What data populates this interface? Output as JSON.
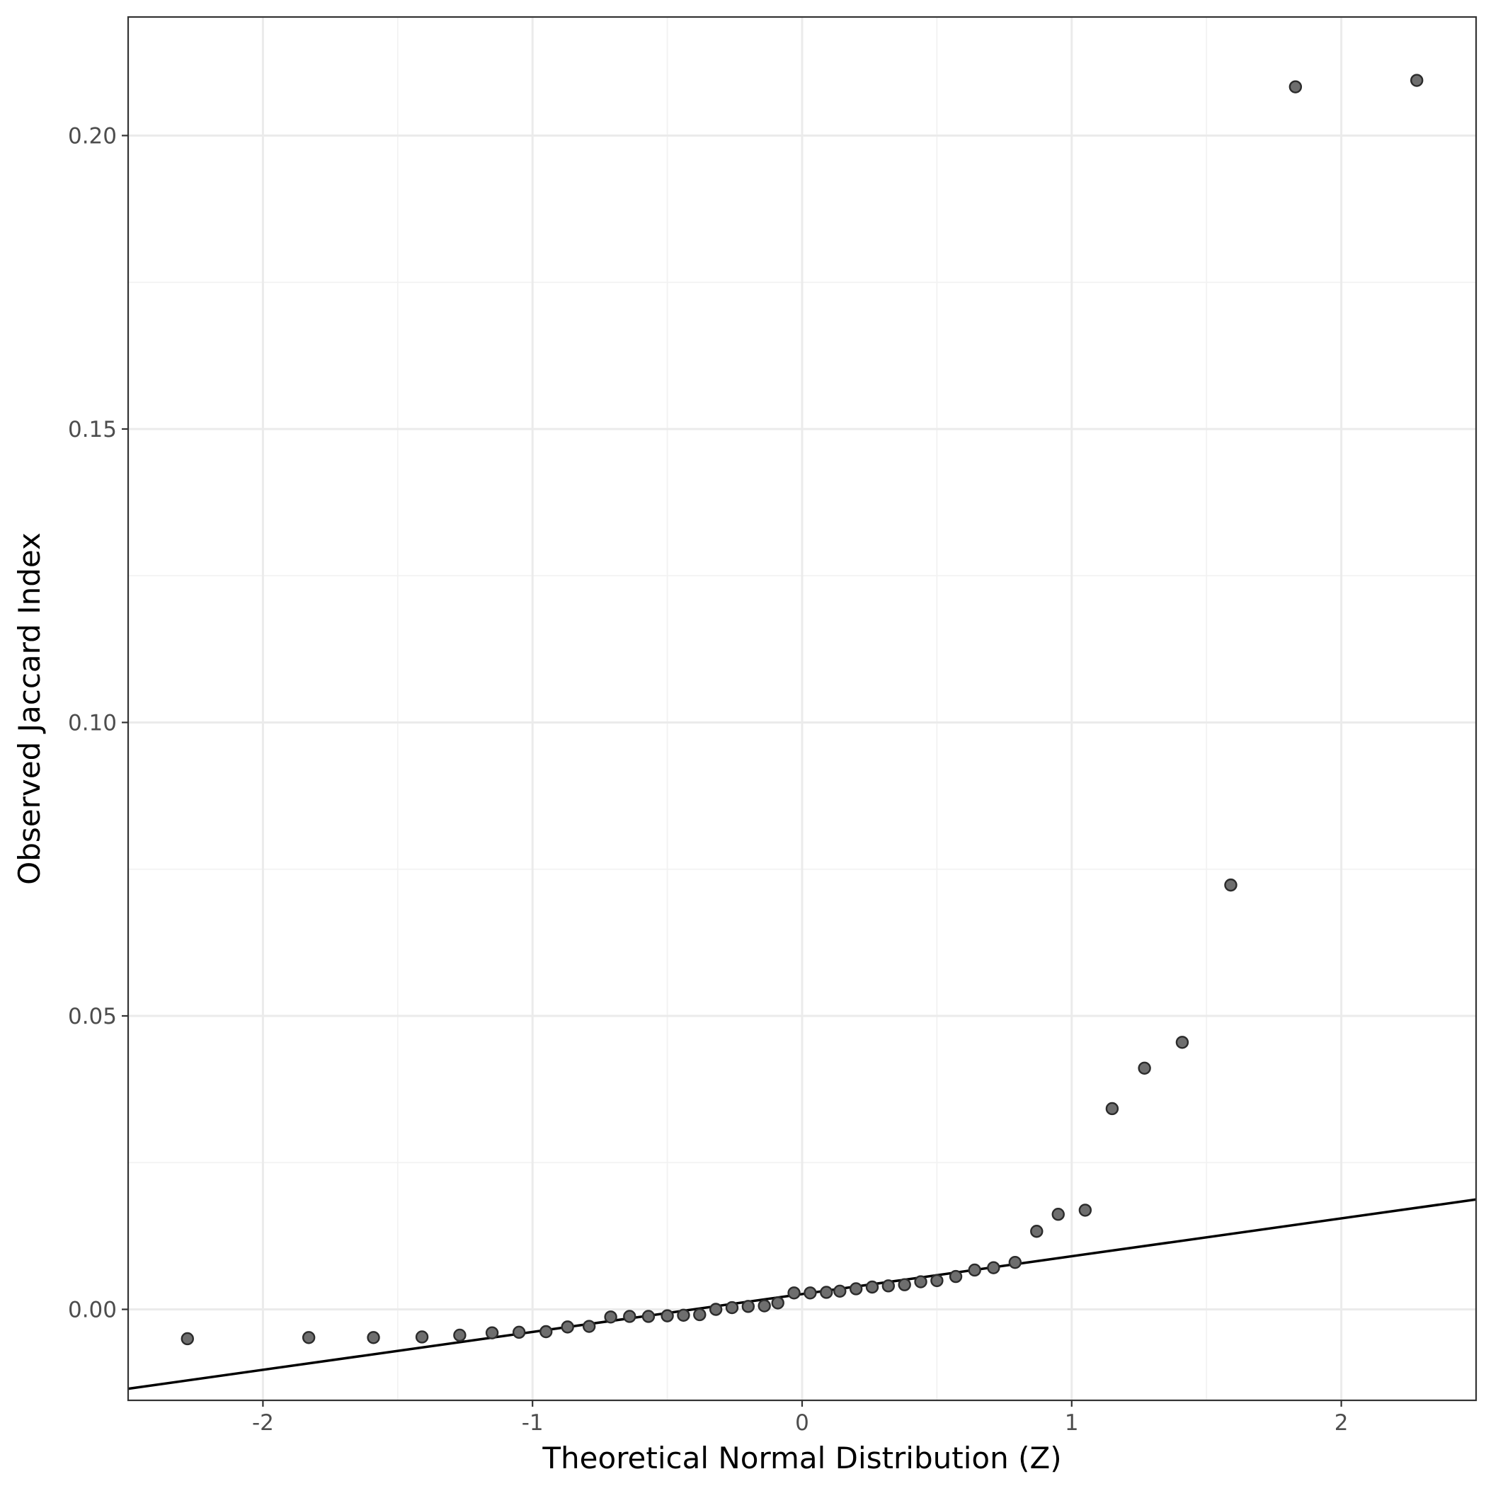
{
  "chart_data": {
    "type": "scatter",
    "title": "",
    "xlabel": "Theoretical Normal Distribution (Z)",
    "ylabel": "Observed Jaccard Index",
    "xlim": [
      -2.5,
      2.5
    ],
    "ylim": [
      -0.0155,
      0.2202
    ],
    "x_ticks": [
      -2,
      -1,
      0,
      1,
      2
    ],
    "x_tick_labels": [
      "-2",
      "-1",
      "0",
      "1",
      "2"
    ],
    "y_ticks": [
      0.0,
      0.05,
      0.1,
      0.15,
      0.2
    ],
    "y_tick_labels": [
      "0.00",
      "0.05",
      "0.10",
      "0.15",
      "0.20"
    ],
    "grid": true,
    "reference_line": {
      "type": "qq-line",
      "intercept": 0.0026,
      "slope": 0.00645
    },
    "points": [
      {
        "x": -2.28,
        "y": -0.005
      },
      {
        "x": -1.83,
        "y": -0.0048
      },
      {
        "x": -1.59,
        "y": -0.0048
      },
      {
        "x": -1.41,
        "y": -0.0047
      },
      {
        "x": -1.27,
        "y": -0.0044
      },
      {
        "x": -1.15,
        "y": -0.004
      },
      {
        "x": -1.05,
        "y": -0.0039
      },
      {
        "x": -0.95,
        "y": -0.0038
      },
      {
        "x": -0.87,
        "y": -0.003
      },
      {
        "x": -0.79,
        "y": -0.0029
      },
      {
        "x": -0.71,
        "y": -0.0013
      },
      {
        "x": -0.64,
        "y": -0.0012
      },
      {
        "x": -0.57,
        "y": -0.0012
      },
      {
        "x": -0.5,
        "y": -0.0011
      },
      {
        "x": -0.44,
        "y": -0.001
      },
      {
        "x": -0.38,
        "y": -0.0009
      },
      {
        "x": -0.32,
        "y": 0.0
      },
      {
        "x": -0.26,
        "y": 0.0003
      },
      {
        "x": -0.2,
        "y": 0.0005
      },
      {
        "x": -0.14,
        "y": 0.0006
      },
      {
        "x": -0.09,
        "y": 0.0011
      },
      {
        "x": -0.03,
        "y": 0.0028
      },
      {
        "x": 0.03,
        "y": 0.0028
      },
      {
        "x": 0.09,
        "y": 0.0029
      },
      {
        "x": 0.14,
        "y": 0.0031
      },
      {
        "x": 0.2,
        "y": 0.0035
      },
      {
        "x": 0.26,
        "y": 0.0038
      },
      {
        "x": 0.32,
        "y": 0.004
      },
      {
        "x": 0.38,
        "y": 0.0042
      },
      {
        "x": 0.44,
        "y": 0.0047
      },
      {
        "x": 0.5,
        "y": 0.0049
      },
      {
        "x": 0.57,
        "y": 0.0056
      },
      {
        "x": 0.64,
        "y": 0.0067
      },
      {
        "x": 0.71,
        "y": 0.0071
      },
      {
        "x": 0.79,
        "y": 0.008
      },
      {
        "x": 0.87,
        "y": 0.0133
      },
      {
        "x": 0.95,
        "y": 0.0162
      },
      {
        "x": 1.05,
        "y": 0.0169
      },
      {
        "x": 1.15,
        "y": 0.0342
      },
      {
        "x": 1.27,
        "y": 0.0411
      },
      {
        "x": 1.41,
        "y": 0.0455
      },
      {
        "x": 1.59,
        "y": 0.0723
      },
      {
        "x": 1.83,
        "y": 0.2083
      },
      {
        "x": 2.28,
        "y": 0.2094
      }
    ]
  }
}
